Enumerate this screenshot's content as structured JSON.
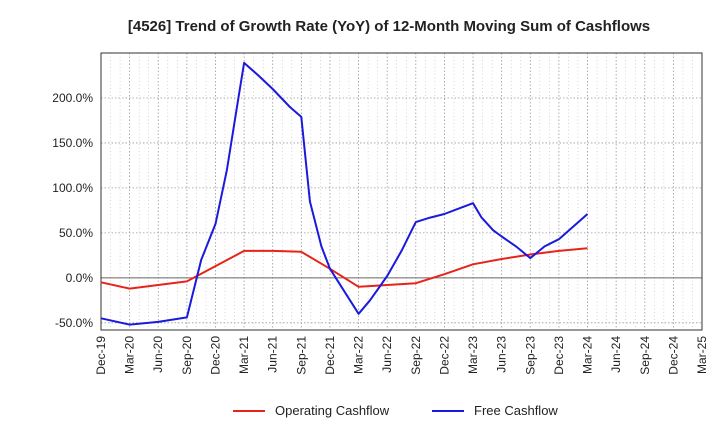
{
  "chart_data": {
    "type": "line",
    "title": "[4526]  Trend of Growth Rate (YoY) of 12-Month Moving Sum of Cashflows",
    "x": [
      "Dec-19",
      "Mar-20",
      "Jun-20",
      "Sep-20",
      "Dec-20",
      "Mar-21",
      "Jun-21",
      "Sep-21",
      "Dec-21",
      "Mar-22",
      "Jun-22",
      "Sep-22",
      "Dec-22",
      "Mar-23",
      "Jun-23",
      "Sep-23",
      "Dec-23",
      "Mar-24",
      "Jun-24",
      "Sep-24",
      "Dec-24",
      "Mar-25"
    ],
    "ylim": [
      -58,
      250
    ],
    "yticks": [
      -50,
      0,
      50,
      100,
      150,
      200
    ],
    "ytick_labels": [
      "-50.0%",
      "0.0%",
      "50.0%",
      "100.0%",
      "150.0%",
      "200.0%"
    ],
    "grid": true,
    "legend_position": "bottom",
    "series": [
      {
        "name": "Operating Cashflow",
        "color": "#e8231a",
        "points": [
          [
            0,
            -5
          ],
          [
            1,
            -12
          ],
          [
            2,
            -8
          ],
          [
            3,
            -4
          ],
          [
            4,
            13
          ],
          [
            5,
            30
          ],
          [
            6,
            30
          ],
          [
            7,
            29
          ],
          [
            8,
            10
          ],
          [
            9,
            -10
          ],
          [
            10,
            -8
          ],
          [
            11,
            -6
          ],
          [
            12,
            4
          ],
          [
            13,
            15
          ],
          [
            14,
            21
          ],
          [
            15,
            26
          ],
          [
            16,
            30
          ],
          [
            17,
            33
          ]
        ]
      },
      {
        "name": "Free Cashflow",
        "color": "#1a1adc",
        "points": [
          [
            0,
            -45
          ],
          [
            1,
            -52
          ],
          [
            2,
            -49
          ],
          [
            3,
            -44
          ],
          [
            3.5,
            20
          ],
          [
            4,
            60
          ],
          [
            4.4,
            120
          ],
          [
            4.8,
            200
          ],
          [
            5,
            239
          ],
          [
            5.5,
            225
          ],
          [
            6,
            210
          ],
          [
            6.6,
            190
          ],
          [
            7,
            179
          ],
          [
            7.3,
            85
          ],
          [
            7.7,
            35
          ],
          [
            8,
            10
          ],
          [
            8.5,
            -15
          ],
          [
            9,
            -40
          ],
          [
            9.4,
            -25
          ],
          [
            10,
            2
          ],
          [
            10.5,
            30
          ],
          [
            11,
            62
          ],
          [
            11.5,
            67
          ],
          [
            12,
            71
          ],
          [
            12.5,
            77
          ],
          [
            13,
            83
          ],
          [
            13.3,
            67
          ],
          [
            13.7,
            53
          ],
          [
            14,
            46
          ],
          [
            14.5,
            35
          ],
          [
            15,
            22
          ],
          [
            15.5,
            35
          ],
          [
            16,
            43
          ],
          [
            16.5,
            57
          ],
          [
            17,
            71
          ]
        ]
      }
    ]
  }
}
